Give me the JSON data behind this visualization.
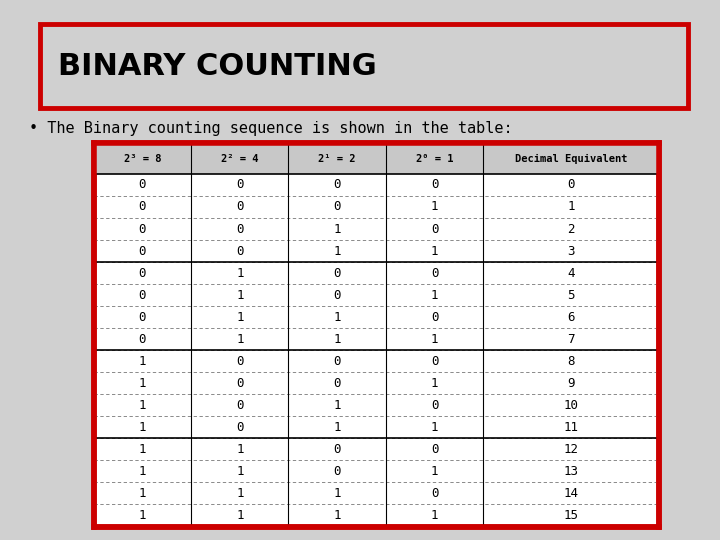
{
  "title": "BINARY COUNTING",
  "subtitle": "• The Binary counting sequence is shown in the table:",
  "bg_color": "#d0d0d0",
  "title_box_color": "#d0d0d0",
  "title_border_color": "#cc0000",
  "table_border_color": "#cc0000",
  "col_headers": [
    "2³ = 8",
    "2² = 4",
    "2¹ = 2",
    "2⁰ = 1",
    "Decimal Equivalent"
  ],
  "table_data": [
    [
      0,
      0,
      0,
      0,
      0
    ],
    [
      0,
      0,
      0,
      1,
      1
    ],
    [
      0,
      0,
      1,
      0,
      2
    ],
    [
      0,
      0,
      1,
      1,
      3
    ],
    [
      0,
      1,
      0,
      0,
      4
    ],
    [
      0,
      1,
      0,
      1,
      5
    ],
    [
      0,
      1,
      1,
      0,
      6
    ],
    [
      0,
      1,
      1,
      1,
      7
    ],
    [
      1,
      0,
      0,
      0,
      8
    ],
    [
      1,
      0,
      0,
      1,
      9
    ],
    [
      1,
      0,
      1,
      0,
      10
    ],
    [
      1,
      0,
      1,
      1,
      11
    ],
    [
      1,
      1,
      0,
      0,
      12
    ],
    [
      1,
      1,
      0,
      1,
      13
    ],
    [
      1,
      1,
      1,
      0,
      14
    ],
    [
      1,
      1,
      1,
      1,
      15
    ]
  ],
  "font_size_title": 22,
  "font_size_subtitle": 11,
  "font_size_header": 7.5,
  "font_size_data": 9,
  "col_widths_rel": [
    1,
    1,
    1,
    1,
    1.8
  ]
}
